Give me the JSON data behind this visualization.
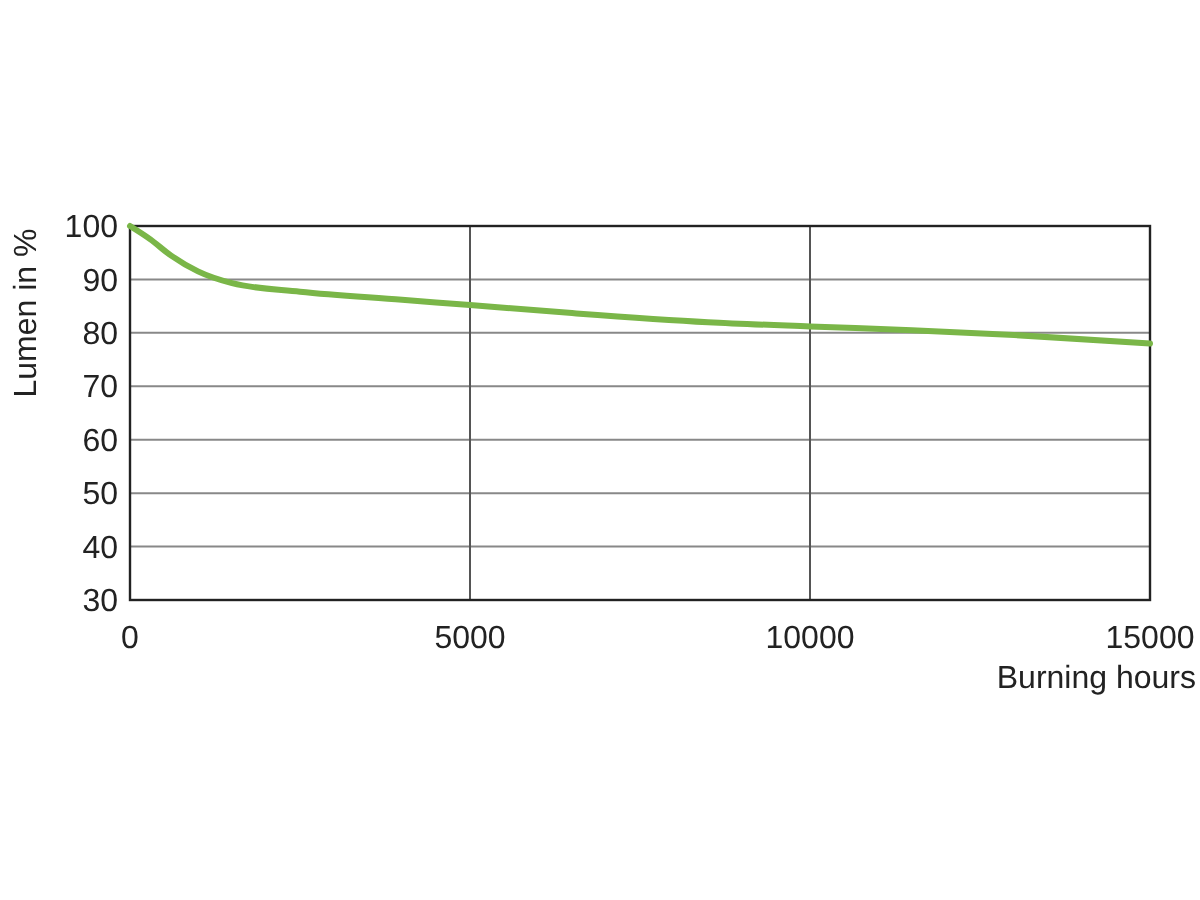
{
  "chart_data": {
    "type": "line",
    "xlabel": "Burning hours",
    "ylabel": "Lumen in %",
    "x": [
      0,
      300,
      600,
      1000,
      1500,
      2500,
      4000,
      5000,
      6500,
      8500,
      10000,
      11500,
      13000,
      15000
    ],
    "series": [
      {
        "color": "#7ab648",
        "values": [
          100,
          97.5,
          94.5,
          91.5,
          89.3,
          87.7,
          86.2,
          85.2,
          83.7,
          82,
          81.2,
          80.5,
          79.6,
          78
        ]
      }
    ],
    "xlim": [
      0,
      15000
    ],
    "xticks": [
      0,
      5000,
      10000,
      15000
    ],
    "ylim": [
      30,
      100
    ],
    "yticks": [
      30,
      40,
      50,
      60,
      70,
      80,
      90,
      100
    ],
    "grid": true,
    "line_style": "solid"
  }
}
